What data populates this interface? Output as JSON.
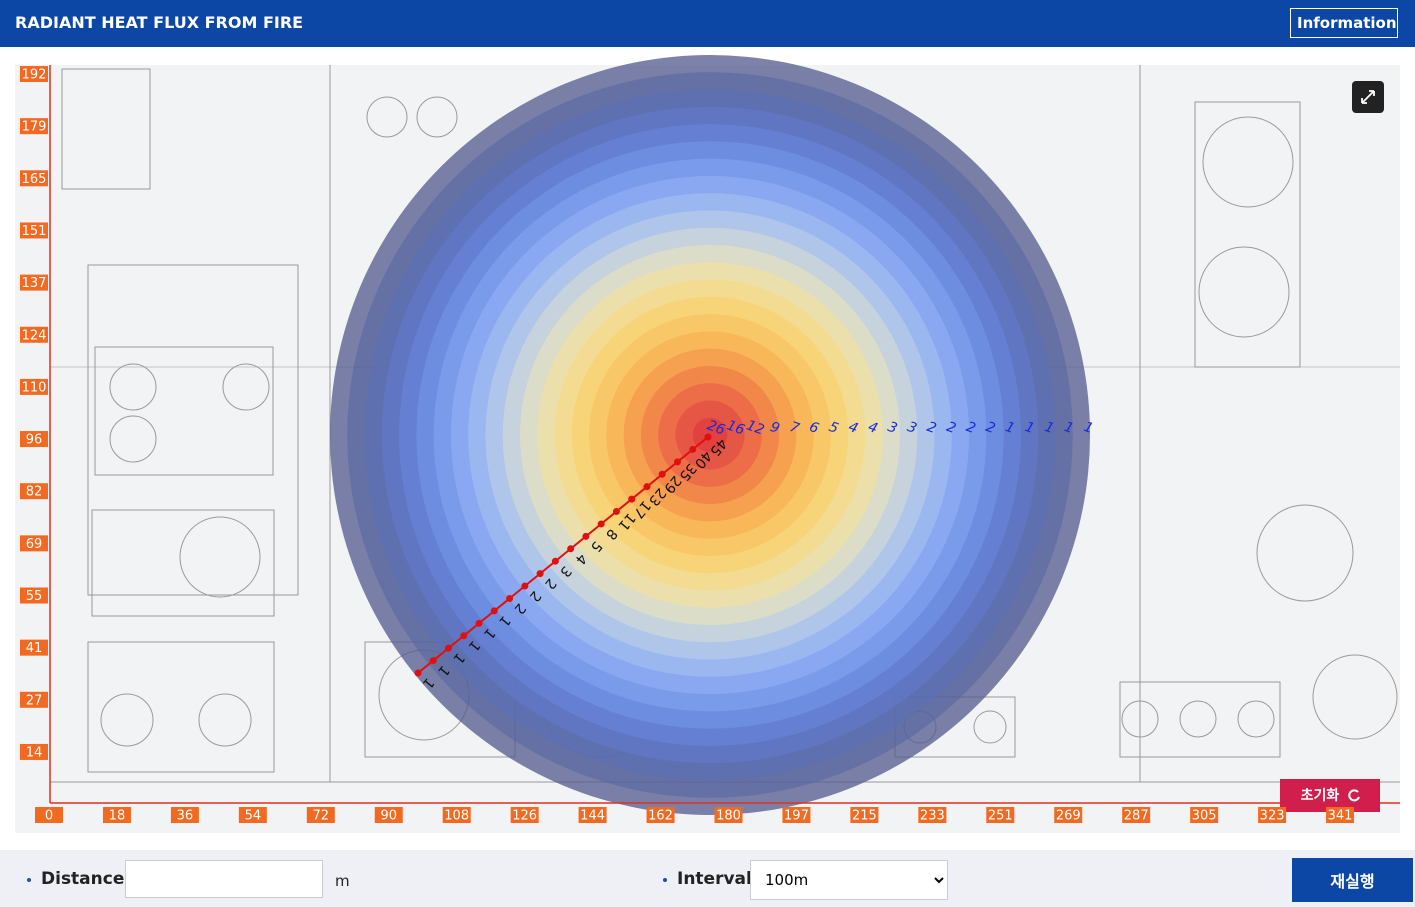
{
  "header": {
    "title": "RADIANT HEAT FLUX FROM FIRE",
    "info_button": "Information"
  },
  "plot": {
    "y_labels": [
      192,
      179,
      165,
      151,
      137,
      124,
      110,
      96,
      82,
      69,
      55,
      41,
      27,
      14
    ],
    "x_labels": [
      0,
      18,
      36,
      54,
      72,
      90,
      108,
      126,
      144,
      162,
      180,
      197,
      215,
      233,
      251,
      269,
      287,
      305,
      323,
      341
    ],
    "horizontal_labels": [
      26,
      16,
      12,
      9,
      7,
      6,
      5,
      4,
      4,
      3,
      3,
      2,
      2,
      2,
      2,
      1,
      1,
      1,
      1,
      1
    ],
    "diagonal_labels": [
      45,
      40,
      35,
      29,
      23,
      17,
      11,
      8,
      5,
      4,
      3,
      2,
      2,
      2,
      1,
      1,
      1,
      1,
      1,
      1
    ],
    "reset_button": "초기화"
  },
  "controls": {
    "distance_label": "Distance",
    "distance_unit": "m",
    "interval_label": "Interval",
    "interval_value": "100m",
    "run_button": "재실행"
  }
}
